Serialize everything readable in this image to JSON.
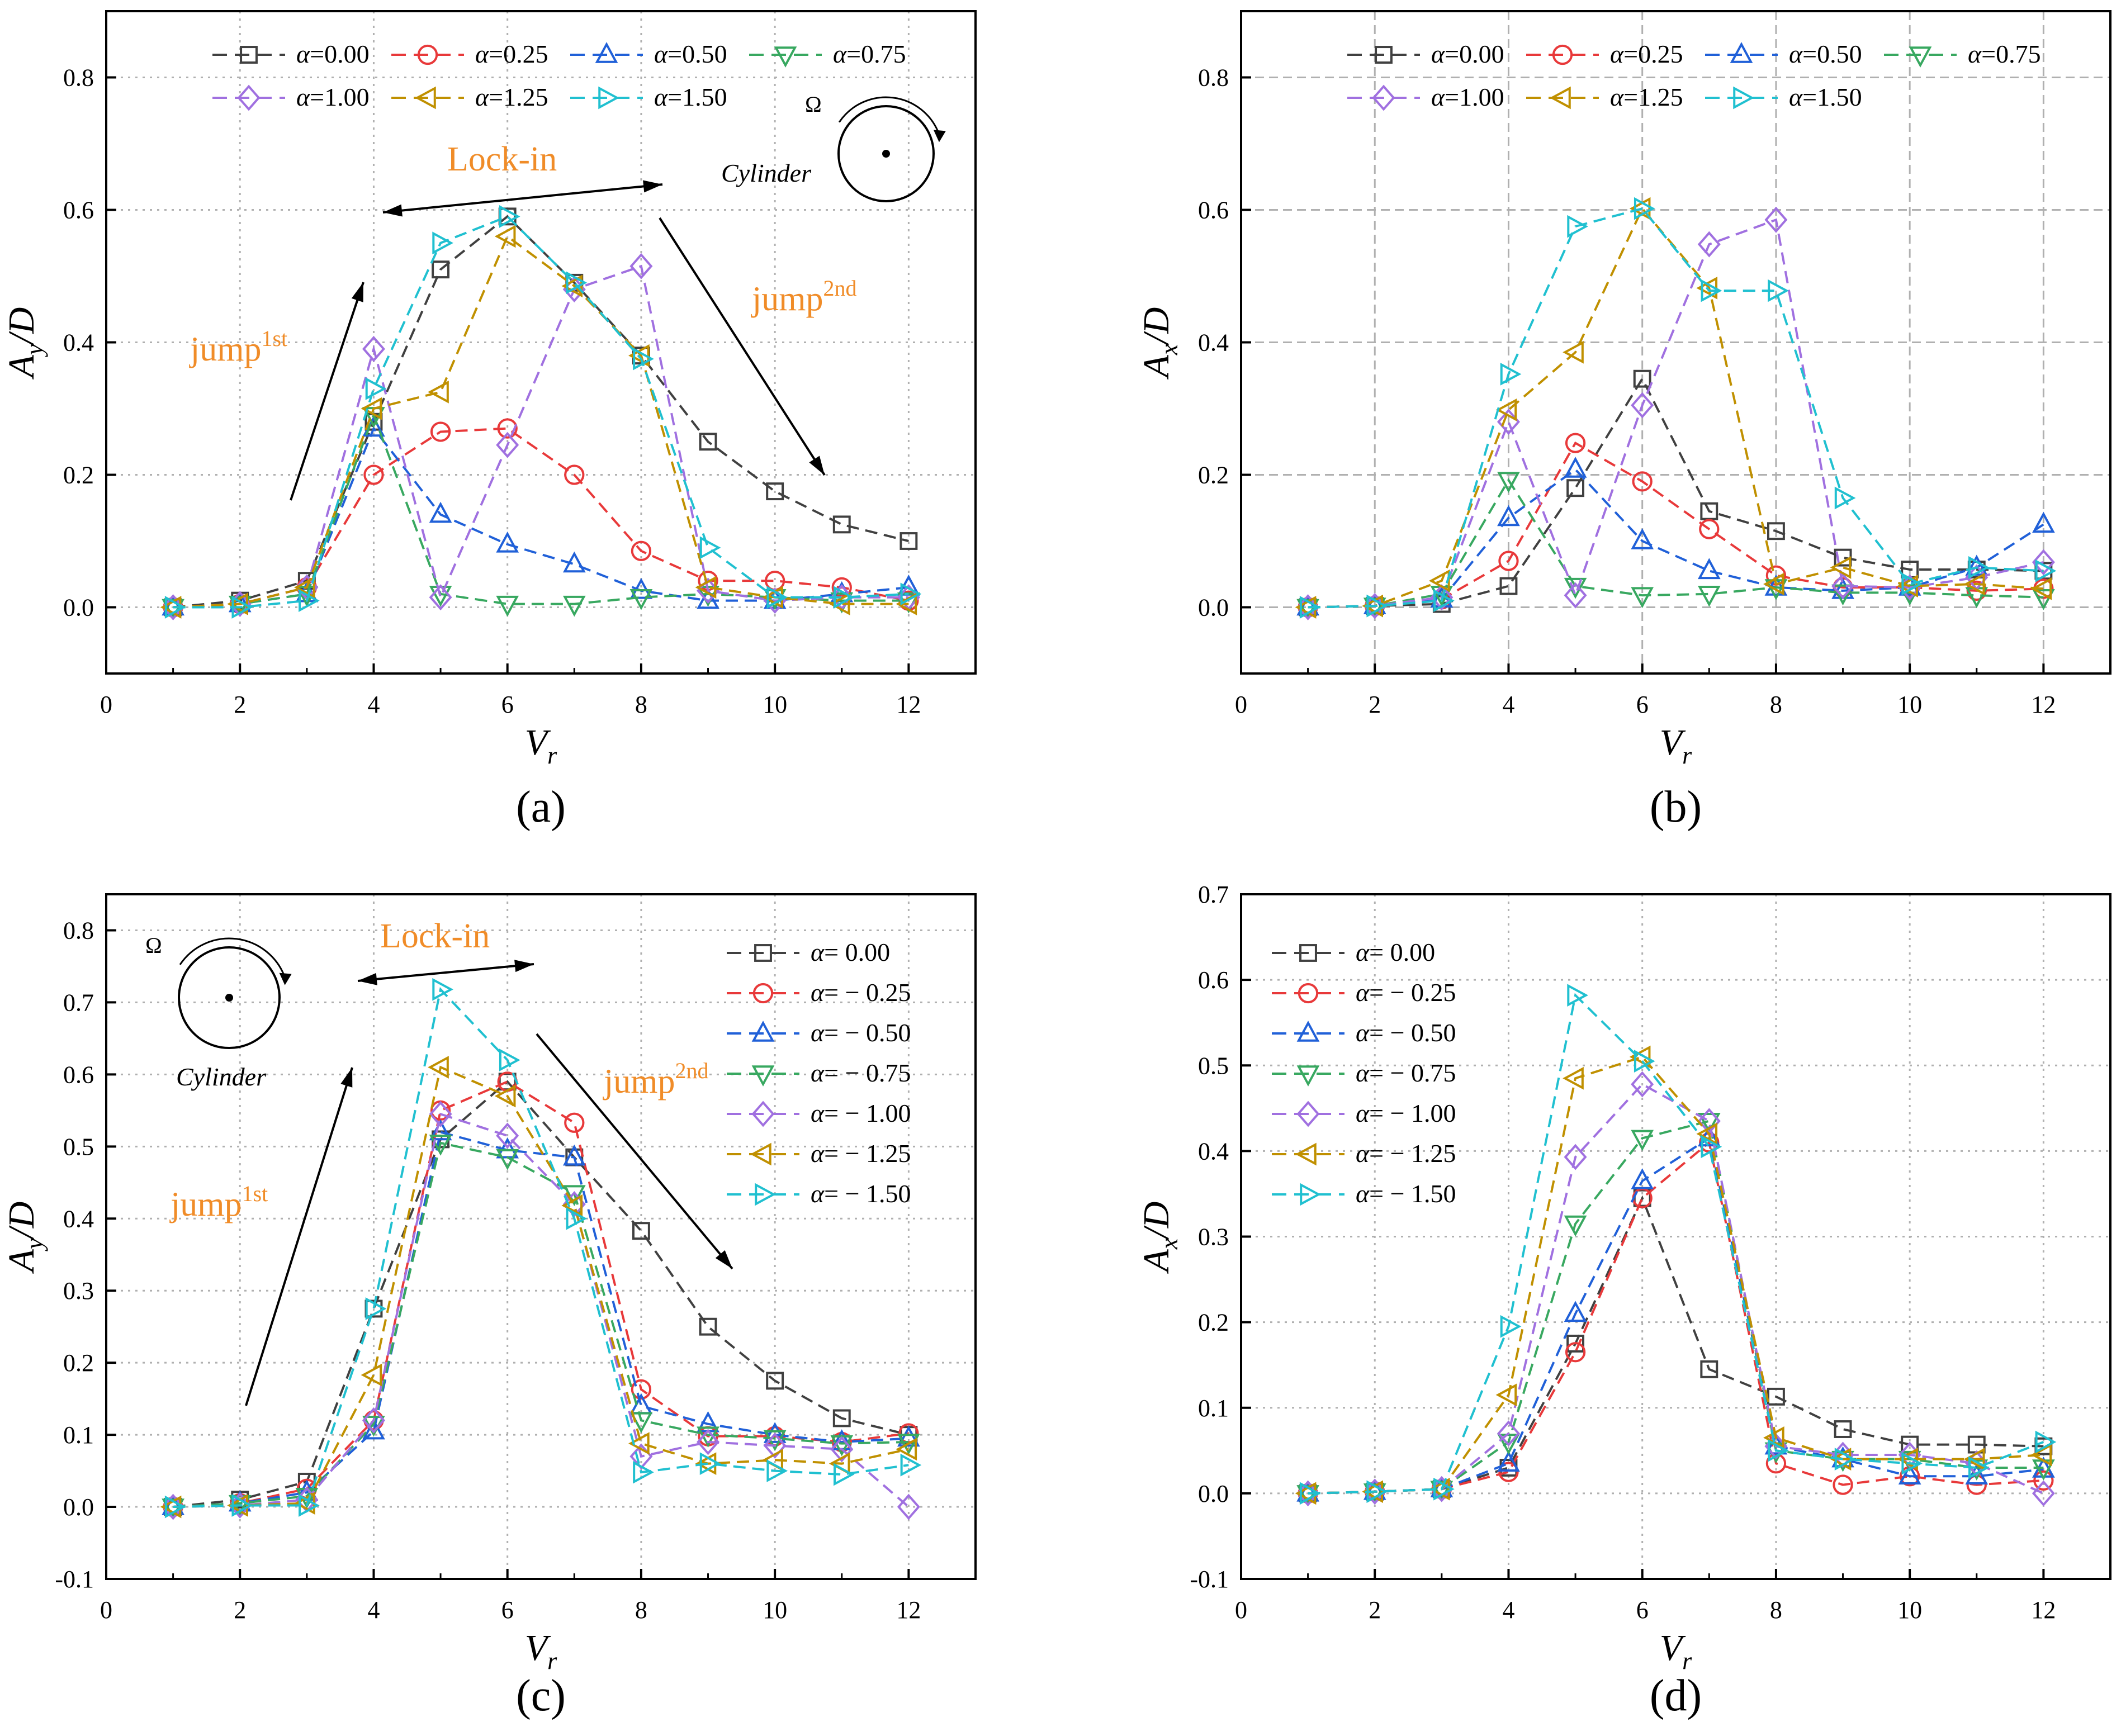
{
  "colors": {
    "series": [
      "#404040",
      "#e8393a",
      "#2060d8",
      "#38a860",
      "#a070e0",
      "#c09000",
      "#20c0d0"
    ],
    "annotation": "#f08c28",
    "axis": "#000000",
    "grid": "#b0b0b0"
  },
  "chart_data": [
    {
      "id": "a",
      "panel_label": "(a)",
      "type": "line",
      "xlabel": "V",
      "xlabel_sub": "r",
      "ylabel_main": "A",
      "ylabel_sub": "y",
      "ylabel_tail": "/D",
      "xlim": [
        0,
        13
      ],
      "ylim": [
        -0.1,
        0.9
      ],
      "xticks": [
        "0",
        "2",
        "4",
        "6",
        "8",
        "10",
        "12"
      ],
      "yticks": [
        "0.0",
        "0.2",
        "0.4",
        "0.6",
        "0.8"
      ],
      "x": [
        1,
        2,
        3,
        4,
        5,
        6,
        7,
        8,
        9,
        10,
        11,
        12
      ],
      "legend_prefix": "α",
      "legend_layout": "three-top",
      "series": [
        {
          "name": "=0.00",
          "marker": "square",
          "values": [
            0,
            0.01,
            0.04,
            0.28,
            0.51,
            0.59,
            0.49,
            0.38,
            0.25,
            0.175,
            0.125,
            0.1
          ]
        },
        {
          "name": "=0.25",
          "marker": "circle",
          "values": [
            0,
            0.005,
            0.03,
            0.2,
            0.265,
            0.27,
            0.2,
            0.085,
            0.04,
            0.04,
            0.03,
            0.01
          ]
        },
        {
          "name": "=0.50",
          "marker": "triangle-up",
          "values": [
            0,
            0.005,
            0.02,
            0.27,
            0.14,
            0.095,
            0.065,
            0.025,
            0.01,
            0.01,
            0.02,
            0.03
          ]
        },
        {
          "name": "=0.75",
          "marker": "triangle-down",
          "values": [
            0,
            0.005,
            0.02,
            0.29,
            0.02,
            0.005,
            0.005,
            0.015,
            0.02,
            0.015,
            0.01,
            0.01
          ]
        },
        {
          "name": "=1.00",
          "marker": "diamond",
          "values": [
            0,
            0.005,
            0.03,
            0.39,
            0.015,
            0.245,
            0.48,
            0.515,
            0.025,
            0.01,
            0.015,
            0.015
          ]
        },
        {
          "name": "=1.25",
          "marker": "triangle-left",
          "values": [
            0,
            0.005,
            0.03,
            0.3,
            0.325,
            0.56,
            0.485,
            0.38,
            0.03,
            0.015,
            0.005,
            0.005
          ]
        },
        {
          "name": "=1.50",
          "marker": "triangle-right",
          "values": [
            0,
            0.0,
            0.01,
            0.33,
            0.55,
            0.59,
            0.49,
            0.375,
            0.09,
            0.015,
            0.015,
            0.02
          ]
        }
      ],
      "annotations": {
        "lockin": "Lock-in",
        "jump1": "jump",
        "jump1_sup": "1st",
        "jump2": "jump",
        "jump2_sup": "2nd",
        "cylinder": "Cylinder",
        "omega": "Ω"
      }
    },
    {
      "id": "b",
      "panel_label": "(b)",
      "type": "line",
      "xlabel": "V",
      "xlabel_sub": "r",
      "ylabel_main": "A",
      "ylabel_sub": "x",
      "ylabel_tail": "/D",
      "xlim": [
        0,
        13
      ],
      "ylim": [
        -0.1,
        0.9
      ],
      "xticks": [
        "0",
        "2",
        "4",
        "6",
        "8",
        "10",
        "12"
      ],
      "yticks": [
        "0.0",
        "0.2",
        "0.4",
        "0.6",
        "0.8"
      ],
      "x": [
        1,
        2,
        3,
        4,
        5,
        6,
        7,
        8,
        9,
        10,
        11,
        12
      ],
      "legend_prefix": "α",
      "legend_layout": "three-top",
      "series": [
        {
          "name": "=0.00",
          "marker": "square",
          "values": [
            0,
            0.002,
            0.005,
            0.032,
            0.18,
            0.345,
            0.145,
            0.115,
            0.075,
            0.057,
            0.057,
            0.055
          ]
        },
        {
          "name": "=0.25",
          "marker": "circle",
          "values": [
            0,
            0.002,
            0.012,
            0.07,
            0.248,
            0.19,
            0.118,
            0.048,
            0.03,
            0.03,
            0.025,
            0.028
          ]
        },
        {
          "name": "=0.50",
          "marker": "triangle-up",
          "values": [
            0,
            0.002,
            0.012,
            0.135,
            0.208,
            0.1,
            0.055,
            0.03,
            0.025,
            0.03,
            0.06,
            0.125
          ]
        },
        {
          "name": "=0.75",
          "marker": "triangle-down",
          "values": [
            0,
            0.002,
            0.02,
            0.192,
            0.032,
            0.018,
            0.02,
            0.03,
            0.022,
            0.022,
            0.018,
            0.015
          ]
        },
        {
          "name": "=1.00",
          "marker": "diamond",
          "values": [
            0,
            0.002,
            0.015,
            0.28,
            0.018,
            0.305,
            0.548,
            0.585,
            0.032,
            0.03,
            0.045,
            0.068
          ]
        },
        {
          "name": "=1.25",
          "marker": "triangle-left",
          "values": [
            0,
            0.002,
            0.04,
            0.298,
            0.385,
            0.602,
            0.482,
            0.035,
            0.06,
            0.032,
            0.035,
            0.028
          ]
        },
        {
          "name": "=1.50",
          "marker": "triangle-right",
          "values": [
            0,
            0.002,
            0.01,
            0.352,
            0.575,
            0.602,
            0.478,
            0.478,
            0.165,
            0.035,
            0.06,
            0.055
          ]
        }
      ]
    },
    {
      "id": "c",
      "panel_label": "(c)",
      "type": "line",
      "xlabel": "V",
      "xlabel_sub": "r",
      "ylabel_main": "A",
      "ylabel_sub": "y",
      "ylabel_tail": "/D",
      "xlim": [
        0,
        13
      ],
      "ylim": [
        -0.1,
        0.85
      ],
      "xticks": [
        "0",
        "2",
        "4",
        "6",
        "8",
        "10",
        "12"
      ],
      "yticks": [
        "-0.1",
        "0.0",
        "0.1",
        "0.2",
        "0.3",
        "0.4",
        "0.5",
        "0.6",
        "0.7",
        "0.8"
      ],
      "x": [
        1,
        2,
        3,
        4,
        5,
        6,
        7,
        8,
        9,
        10,
        11,
        12
      ],
      "legend_prefix": "α",
      "legend_layout": "column-right",
      "series": [
        {
          "name": "=    0.00",
          "marker": "square",
          "values": [
            0,
            0.01,
            0.035,
            0.275,
            0.51,
            0.59,
            0.485,
            0.383,
            0.25,
            0.175,
            0.123,
            0.1
          ]
        },
        {
          "name": "= − 0.25",
          "marker": "circle",
          "values": [
            0,
            0.005,
            0.025,
            0.12,
            0.55,
            0.59,
            0.533,
            0.163,
            0.098,
            0.098,
            0.09,
            0.102
          ]
        },
        {
          "name": "= − 0.50",
          "marker": "triangle-up",
          "values": [
            0,
            0.005,
            0.02,
            0.105,
            0.52,
            0.495,
            0.485,
            0.14,
            0.115,
            0.1,
            0.09,
            0.095
          ]
        },
        {
          "name": "= − 0.75",
          "marker": "triangle-down",
          "values": [
            0,
            0.005,
            0.015,
            0.115,
            0.505,
            0.485,
            0.435,
            0.12,
            0.1,
            0.095,
            0.088,
            0.09
          ]
        },
        {
          "name": "= − 1.00",
          "marker": "diamond",
          "values": [
            0,
            0.002,
            0.01,
            0.12,
            0.545,
            0.515,
            0.42,
            0.07,
            0.09,
            0.085,
            0.08,
            0.0
          ]
        },
        {
          "name": "= − 1.25",
          "marker": "triangle-left",
          "values": [
            0,
            0.002,
            0.005,
            0.183,
            0.61,
            0.57,
            0.418,
            0.088,
            0.06,
            0.065,
            0.06,
            0.08
          ]
        },
        {
          "name": "= − 1.50",
          "marker": "triangle-right",
          "values": [
            0,
            0.002,
            0.002,
            0.275,
            0.718,
            0.62,
            0.4,
            0.048,
            0.06,
            0.05,
            0.045,
            0.058
          ]
        }
      ],
      "annotations": {
        "lockin": "Lock-in",
        "jump1": "jump",
        "jump1_sup": "1st",
        "jump2": "jump",
        "jump2_sup": "2nd",
        "cylinder": "Cylinder",
        "omega": "Ω"
      }
    },
    {
      "id": "d",
      "panel_label": "(d)",
      "type": "line",
      "xlabel": "V",
      "xlabel_sub": "r",
      "ylabel_main": "A",
      "ylabel_sub": "x",
      "ylabel_tail": "/D",
      "xlim": [
        0,
        13
      ],
      "ylim": [
        -0.1,
        0.7
      ],
      "xticks": [
        "0",
        "2",
        "4",
        "6",
        "8",
        "10",
        "12"
      ],
      "yticks": [
        "-0.1",
        "0.0",
        "0.1",
        "0.2",
        "0.3",
        "0.4",
        "0.5",
        "0.6",
        "0.7"
      ],
      "x": [
        1,
        2,
        3,
        4,
        5,
        6,
        7,
        8,
        9,
        10,
        11,
        12
      ],
      "legend_prefix": "α",
      "legend_layout": "column-left",
      "series": [
        {
          "name": "=    0.00",
          "marker": "square",
          "values": [
            0,
            0.002,
            0.005,
            0.03,
            0.175,
            0.345,
            0.145,
            0.113,
            0.075,
            0.057,
            0.057,
            0.055
          ]
        },
        {
          "name": "= − 0.25",
          "marker": "circle",
          "values": [
            0,
            0.002,
            0.005,
            0.025,
            0.165,
            0.345,
            0.41,
            0.035,
            0.01,
            0.02,
            0.01,
            0.015
          ]
        },
        {
          "name": "= − 0.50",
          "marker": "triangle-up",
          "values": [
            0,
            0.002,
            0.005,
            0.035,
            0.21,
            0.365,
            0.415,
            0.055,
            0.04,
            0.02,
            0.02,
            0.028
          ]
        },
        {
          "name": "= − 0.75",
          "marker": "triangle-down",
          "values": [
            0,
            0.002,
            0.005,
            0.06,
            0.315,
            0.415,
            0.435,
            0.05,
            0.04,
            0.04,
            0.03,
            0.03
          ]
        },
        {
          "name": "= − 1.00",
          "marker": "diamond",
          "values": [
            0,
            0.002,
            0.005,
            0.07,
            0.393,
            0.478,
            0.435,
            0.055,
            0.045,
            0.045,
            0.035,
            0.0
          ]
        },
        {
          "name": "= − 1.25",
          "marker": "triangle-left",
          "values": [
            0,
            0.002,
            0.005,
            0.115,
            0.485,
            0.51,
            0.42,
            0.065,
            0.04,
            0.04,
            0.04,
            0.045
          ]
        },
        {
          "name": "= − 1.50",
          "marker": "triangle-right",
          "values": [
            0,
            0.002,
            0.005,
            0.195,
            0.582,
            0.505,
            0.405,
            0.05,
            0.04,
            0.035,
            0.03,
            0.06
          ]
        }
      ]
    }
  ]
}
